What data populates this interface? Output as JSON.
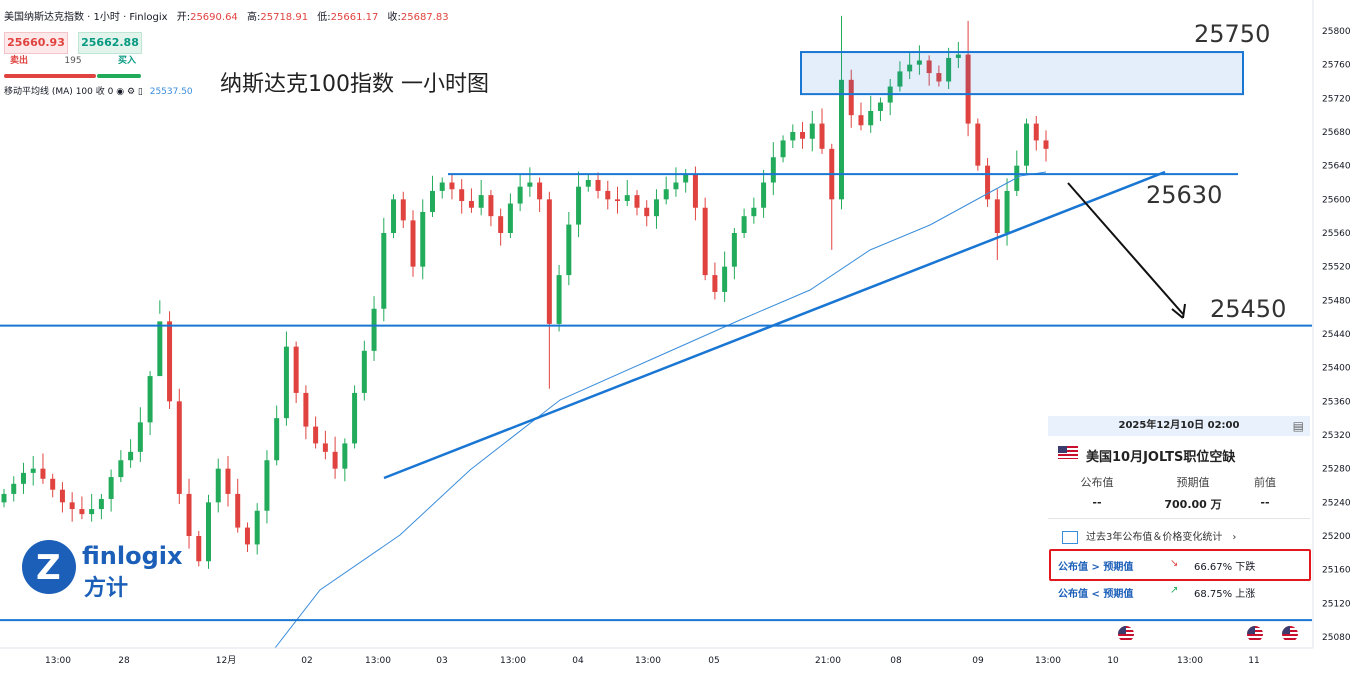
{
  "header": {
    "symbol": "美国纳斯达克指数 · 1小时 · Finlogix",
    "open_label": "开:",
    "open": "25690.64",
    "high_label": "高:",
    "high": "25718.91",
    "low_label": "低:",
    "low": "25661.17",
    "close_label": "收:",
    "close": "25687.83"
  },
  "trade": {
    "sell_price": "25660.93",
    "buy_price": "25662.88",
    "spread": "195",
    "sell_label": "卖出",
    "buy_label": "买入"
  },
  "indicator": {
    "name": "移动平均线 (MA)",
    "params": "100 收 0",
    "value": "25537.50"
  },
  "title": "纳斯达克100指数 一小时图",
  "annotations": {
    "level_25750": "25750",
    "level_25630": "25630",
    "level_25450": "25450"
  },
  "logo": {
    "word": "finlogix",
    "cn": "方计"
  },
  "event_panel": {
    "datetime": "2025年12月10日 02:00",
    "title": "美国10月JOLTS职位空缺",
    "col_actual": "公布值",
    "col_forecast": "预期值",
    "col_previous": "前值",
    "actual": "--",
    "forecast": "700.00 万",
    "previous": "--",
    "stats_link": "过去3年公布值＆价格变化统计",
    "row1_cond": "公布值 > 预期值",
    "row1_pct": "66.67% 下跌",
    "row2_cond": "公布值 < 预期值",
    "row2_pct": "68.75% 上涨",
    "down_color": "#e0433f",
    "up_color": "#22ab5a"
  },
  "chart_data": {
    "type": "candlestick",
    "title": "纳斯达克100指数 一小时图",
    "ylim": [
      25060,
      25820
    ],
    "y_ticks": [
      25080,
      25120,
      25160,
      25200,
      25240,
      25280,
      25320,
      25360,
      25400,
      25440,
      25480,
      25520,
      25560,
      25600,
      25640,
      25680,
      25720,
      25760,
      25800
    ],
    "x_ticks": [
      "13:00",
      "28",
      "12月",
      "02",
      "13:00",
      "03",
      "13:00",
      "04",
      "13:00",
      "05",
      "21:00",
      "08",
      "09",
      "13:00",
      "10",
      "13:00",
      "11"
    ],
    "up_color": "#22ab5a",
    "down_color": "#e0433f",
    "ma_period": 100,
    "ma_last": 25537.5,
    "horizontal_levels": [
      25630,
      25450,
      25100
    ],
    "resistance_zone": [
      25725,
      25775
    ],
    "candles_approx_close": [
      25250,
      25262,
      25275,
      25280,
      25268,
      25255,
      25240,
      25232,
      25226,
      25232,
      25244,
      25270,
      25290,
      25300,
      25335,
      25390,
      25455,
      25360,
      25250,
      25200,
      25170,
      25240,
      25280,
      25250,
      25210,
      25190,
      25230,
      25290,
      25340,
      25425,
      25370,
      25330,
      25310,
      25300,
      25280,
      25310,
      25370,
      25420,
      25470,
      25560,
      25600,
      25575,
      25520,
      25585,
      25610,
      25620,
      25612,
      25598,
      25590,
      25605,
      25580,
      25560,
      25595,
      25615,
      25620,
      25600,
      25452,
      25510,
      25570,
      25615,
      25623,
      25610,
      25600,
      25598,
      25605,
      25590,
      25580,
      25600,
      25612,
      25620,
      25630,
      25590,
      25510,
      25490,
      25520,
      25560,
      25580,
      25590,
      25620,
      25650,
      25670,
      25680,
      25672,
      25690,
      25660,
      25600,
      25742,
      25700,
      25688,
      25705,
      25715,
      25734,
      25752,
      25760,
      25765,
      25750,
      25740,
      25768,
      25772,
      25690,
      25640,
      25600,
      25560,
      25610,
      25640,
      25690,
      25670,
      25660
    ],
    "trendline_support": {
      "from": [
        "2025-12-02 13:00",
        25275
      ],
      "to": [
        "2025-12-10 13:00",
        25635
      ]
    },
    "arrow_target": 25450
  }
}
